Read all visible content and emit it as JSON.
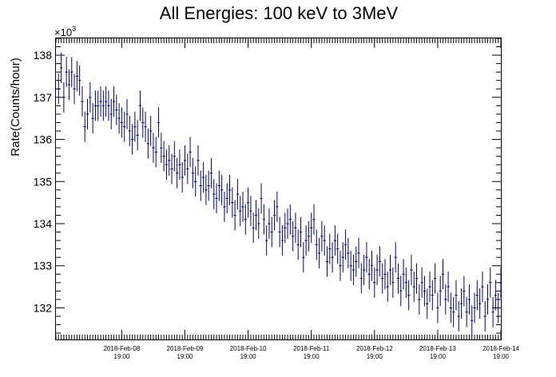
{
  "chart_data": {
    "type": "scatter",
    "title": "All Energies:  100 keV to 3MeV",
    "ylabel": "Rate(Counts/hour)",
    "xlabel": "",
    "y_multiplier": {
      "base": "×10",
      "exponent": "3"
    },
    "ylim": [
      131.25,
      138.4
    ],
    "xlim": [
      "2018-02-07 18:00",
      "2018-02-14 19:00"
    ],
    "y_ticks": [
      132,
      133,
      134,
      135,
      136,
      137,
      138
    ],
    "x_ticks": [
      {
        "line1": "2018-Feb-08",
        "line2": "19:00",
        "x": "2018-02-08 19:00"
      },
      {
        "line1": "2018-Feb-09",
        "line2": "19:00",
        "x": "2018-02-09 19:00"
      },
      {
        "line1": "2018-Feb-10",
        "line2": "19:00",
        "x": "2018-02-10 19:00"
      },
      {
        "line1": "2018-Feb-11",
        "line2": "19:00",
        "x": "2018-02-11 19:00"
      },
      {
        "line1": "2018-Feb-12",
        "line2": "19:00",
        "x": "2018-02-12 19:00"
      },
      {
        "line1": "2018-Feb-13",
        "line2": "19:00",
        "x": "2018-02-13 19:00"
      },
      {
        "line1": "2018-Feb-14",
        "line2": "19:00",
        "x": "2018-02-14 19:00"
      }
    ],
    "x_tick_step_hours": 1,
    "grid": false,
    "series": [
      {
        "marker_color": "#00007f",
        "error_bar": 0.36,
        "x_start": "2018-02-07 19:00",
        "x_step_hours": 1,
        "values": [
          137.2,
          137.7,
          137.0,
          137.6,
          137.3,
          137.6,
          137.2,
          137.5,
          137.4,
          136.9,
          136.3,
          136.6,
          137.0,
          136.5,
          136.8,
          136.8,
          136.9,
          136.8,
          136.9,
          136.8,
          136.6,
          136.9,
          136.7,
          136.5,
          136.4,
          136.3,
          136.6,
          136.2,
          136.0,
          136.3,
          136.1,
          136.8,
          136.4,
          136.3,
          135.9,
          136.2,
          135.8,
          135.7,
          136.4,
          135.8,
          135.6,
          135.4,
          135.5,
          135.3,
          135.6,
          135.2,
          135.4,
          135.1,
          135.5,
          135.3,
          135.7,
          135.2,
          135.0,
          135.5,
          134.9,
          135.1,
          134.8,
          134.9,
          135.2,
          134.7,
          134.6,
          134.9,
          134.8,
          134.4,
          134.6,
          134.8,
          134.5,
          134.2,
          134.7,
          134.3,
          134.4,
          134.1,
          134.5,
          134.3,
          133.9,
          134.2,
          134.0,
          134.6,
          134.1,
          133.6,
          134.0,
          133.8,
          134.2,
          134.4,
          133.8,
          133.6,
          133.9,
          134.0,
          134.1,
          133.7,
          133.9,
          133.5,
          133.8,
          133.2,
          133.6,
          133.7,
          133.9,
          134.1,
          133.5,
          133.3,
          133.7,
          133.6,
          133.1,
          133.4,
          133.2,
          133.6,
          133.4,
          133.0,
          133.2,
          133.5,
          133.3,
          133.0,
          132.9,
          133.1,
          133.3,
          132.7,
          132.9,
          133.2,
          132.8,
          133.0,
          132.6,
          132.9,
          133.1,
          132.7,
          132.8,
          132.5,
          132.9,
          132.6,
          133.2,
          132.7,
          132.4,
          132.8,
          132.6,
          132.3,
          132.9,
          132.5,
          132.7,
          132.2,
          132.6,
          132.4,
          132.1,
          132.5,
          132.3,
          132.7,
          132.0,
          132.4,
          132.8,
          132.2,
          132.5,
          132.0,
          131.9,
          132.3,
          131.8,
          132.1,
          132.4,
          131.9,
          132.2,
          131.7,
          132.0,
          132.3,
          132.1,
          132.5,
          131.8,
          132.2,
          132.6,
          131.9,
          132.3,
          132.0,
          132.6,
          132.2,
          133.0,
          131.9,
          132.4,
          132.8,
          132.1,
          132.5,
          132.0,
          131.7,
          132.4,
          131.9,
          132.2,
          131.8,
          132.6,
          132.0
        ]
      }
    ]
  }
}
